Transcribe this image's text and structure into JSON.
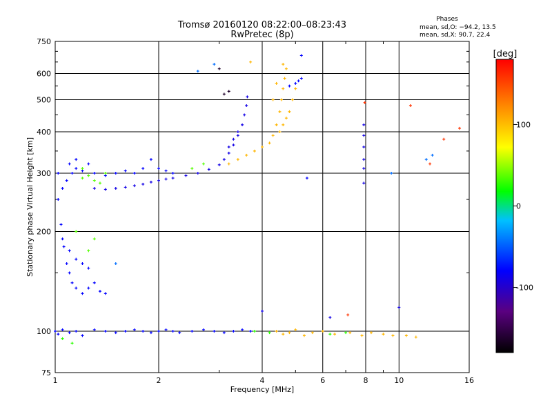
{
  "chart_data": {
    "type": "scatter",
    "title": "Tromsø 20160120 08:22:00–08:23:43",
    "subtitle": "RwPretec (8p)",
    "xlabel": "Frequency [MHz]",
    "ylabel": "Stationary phase Virtual Height [km]",
    "x_scale": "log",
    "y_scale": "log",
    "xlim": [
      1,
      16
    ],
    "ylim": [
      75,
      750
    ],
    "x_ticks": [
      1,
      2,
      4,
      6,
      8,
      10,
      16
    ],
    "y_ticks": [
      75,
      100,
      200,
      300,
      400,
      500,
      600,
      750
    ],
    "grid": true,
    "phases": {
      "title": "Phases",
      "o_line": "mean, sd,O: −94.2, 13.5",
      "x_line": "mean, sd,X:  90.7, 22.4"
    },
    "colorbar": {
      "label": "[deg]",
      "ticks": [
        100,
        0,
        -100
      ],
      "range": [
        -180,
        180
      ],
      "colors": [
        "#000000",
        "#5a0080",
        "#0000ff",
        "#00c0ff",
        "#00ff00",
        "#ffff00",
        "#ff8000",
        "#ff0000"
      ]
    },
    "series": [
      {
        "points": [
          [
            1.0,
            100
          ],
          [
            1.02,
            98
          ],
          [
            1.05,
            101
          ],
          [
            1.1,
            99
          ],
          [
            1.15,
            100
          ],
          [
            1.2,
            97
          ],
          [
            1.3,
            101
          ],
          [
            1.4,
            100
          ],
          [
            1.5,
            99
          ],
          [
            1.6,
            100
          ],
          [
            1.7,
            101
          ],
          [
            1.8,
            100
          ],
          [
            1.9,
            99
          ],
          [
            2.0,
            100
          ],
          [
            2.1,
            101
          ],
          [
            2.2,
            100
          ],
          [
            2.3,
            99
          ],
          [
            2.5,
            100
          ],
          [
            2.7,
            101
          ],
          [
            2.9,
            100
          ],
          [
            3.1,
            99
          ],
          [
            3.3,
            100
          ],
          [
            3.5,
            101
          ],
          [
            3.7,
            100
          ]
        ],
        "phase": -100
      },
      {
        "points": [
          [
            4.4,
            100
          ],
          [
            4.6,
            98
          ],
          [
            4.8,
            99
          ],
          [
            5.0,
            101
          ],
          [
            5.3,
            97
          ],
          [
            5.6,
            99
          ],
          [
            6.0,
            100
          ],
          [
            6.5,
            98
          ],
          [
            7.2,
            99
          ],
          [
            7.8,
            97
          ],
          [
            8.3,
            99
          ],
          [
            9.0,
            98
          ],
          [
            9.6,
            97
          ],
          [
            10.5,
            97
          ],
          [
            11.2,
            96
          ]
        ],
        "phase": 100
      },
      {
        "points": [
          [
            1.05,
            95
          ],
          [
            1.12,
            92
          ],
          [
            3.8,
            100
          ],
          [
            4.2,
            99
          ],
          [
            6.3,
            98
          ],
          [
            7.0,
            99
          ]
        ],
        "phase": 10
      },
      {
        "points": [
          [
            1.02,
            250
          ],
          [
            1.04,
            210
          ],
          [
            1.06,
            180
          ],
          [
            1.08,
            160
          ],
          [
            1.1,
            150
          ],
          [
            1.12,
            140
          ],
          [
            1.15,
            135
          ],
          [
            1.2,
            130
          ],
          [
            1.25,
            135
          ],
          [
            1.3,
            140
          ],
          [
            1.35,
            132
          ],
          [
            1.4,
            130
          ],
          [
            1.05,
            190
          ],
          [
            1.1,
            175
          ],
          [
            1.15,
            165
          ],
          [
            1.2,
            160
          ],
          [
            1.25,
            155
          ],
          [
            1.05,
            270
          ],
          [
            1.08,
            285
          ],
          [
            1.12,
            300
          ],
          [
            1.15,
            310
          ],
          [
            1.2,
            305
          ],
          [
            1.3,
            300
          ],
          [
            1.4,
            295
          ],
          [
            1.5,
            300
          ],
          [
            1.6,
            305
          ],
          [
            1.7,
            300
          ],
          [
            1.8,
            310
          ],
          [
            1.9,
            330
          ],
          [
            2.0,
            310
          ],
          [
            2.1,
            305
          ],
          [
            2.2,
            300
          ],
          [
            1.02,
            300
          ],
          [
            1.1,
            320
          ],
          [
            1.15,
            330
          ],
          [
            1.25,
            320
          ]
        ],
        "phase": -100
      },
      {
        "points": [
          [
            1.3,
            270
          ],
          [
            1.4,
            268
          ],
          [
            1.5,
            270
          ],
          [
            1.6,
            272
          ],
          [
            1.7,
            275
          ],
          [
            1.8,
            278
          ],
          [
            1.9,
            282
          ],
          [
            2.0,
            285
          ],
          [
            2.1,
            288
          ],
          [
            2.2,
            290
          ],
          [
            2.4,
            295
          ],
          [
            2.6,
            300
          ],
          [
            2.8,
            308
          ],
          [
            3.0,
            318
          ],
          [
            3.1,
            330
          ],
          [
            3.2,
            345
          ],
          [
            3.3,
            365
          ],
          [
            3.4,
            390
          ],
          [
            3.5,
            420
          ],
          [
            3.55,
            450
          ],
          [
            3.6,
            480
          ],
          [
            3.62,
            510
          ],
          [
            3.4,
            400
          ],
          [
            3.3,
            380
          ],
          [
            3.2,
            360
          ]
        ],
        "phase": -110
      },
      {
        "points": [
          [
            1.2,
            290
          ],
          [
            1.25,
            295
          ],
          [
            1.3,
            285
          ],
          [
            1.35,
            280
          ],
          [
            1.4,
            300
          ],
          [
            1.2,
            310
          ],
          [
            1.3,
            190
          ],
          [
            1.25,
            175
          ],
          [
            1.15,
            200
          ],
          [
            2.5,
            310
          ],
          [
            2.7,
            320
          ]
        ],
        "phase": 20
      },
      {
        "points": [
          [
            3.2,
            320
          ],
          [
            3.4,
            330
          ],
          [
            3.6,
            340
          ],
          [
            3.8,
            350
          ],
          [
            4.0,
            360
          ],
          [
            4.2,
            370
          ],
          [
            4.3,
            390
          ],
          [
            4.4,
            420
          ],
          [
            4.5,
            460
          ],
          [
            4.55,
            500
          ],
          [
            4.6,
            540
          ],
          [
            4.65,
            580
          ],
          [
            4.7,
            620
          ],
          [
            4.5,
            400
          ],
          [
            4.6,
            420
          ],
          [
            4.7,
            440
          ],
          [
            4.8,
            460
          ],
          [
            4.9,
            500
          ],
          [
            5.0,
            540
          ],
          [
            4.3,
            500
          ],
          [
            4.4,
            560
          ],
          [
            3.7,
            650
          ],
          [
            4.6,
            640
          ]
        ],
        "phase": 100
      },
      {
        "points": [
          [
            5.0,
            560
          ],
          [
            5.1,
            570
          ],
          [
            5.2,
            580
          ],
          [
            4.8,
            550
          ],
          [
            5.2,
            680
          ],
          [
            5.4,
            290
          ]
        ],
        "phase": -100
      },
      {
        "points": [
          [
            7.9,
            420
          ],
          [
            7.9,
            390
          ],
          [
            7.9,
            360
          ],
          [
            7.9,
            330
          ],
          [
            7.9,
            310
          ],
          [
            7.9,
            280
          ],
          [
            6.3,
            110
          ],
          [
            4.0,
            115
          ],
          [
            10.0,
            118
          ]
        ],
        "phase": -110
      },
      {
        "points": [
          [
            7.95,
            490
          ],
          [
            7.1,
            112
          ],
          [
            12.3,
            320
          ],
          [
            13.5,
            380
          ],
          [
            15.0,
            410
          ],
          [
            10.8,
            480
          ]
        ],
        "phase": 160
      },
      {
        "points": [
          [
            3.1,
            520
          ],
          [
            3.2,
            530
          ],
          [
            3.0,
            620
          ]
        ],
        "phase": -170
      },
      {
        "points": [
          [
            1.5,
            160
          ],
          [
            2.6,
            610
          ],
          [
            2.9,
            640
          ],
          [
            12.0,
            330
          ],
          [
            12.5,
            340
          ],
          [
            9.5,
            300
          ]
        ],
        "phase": -60
      }
    ]
  }
}
